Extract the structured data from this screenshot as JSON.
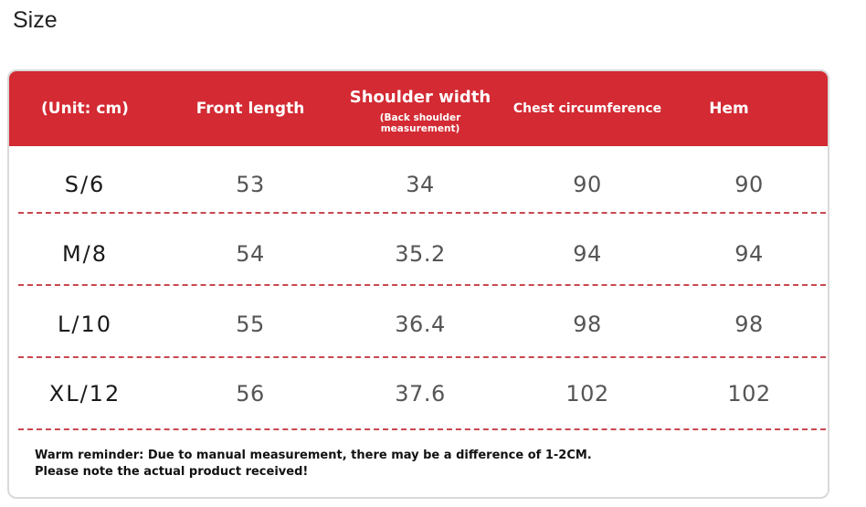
{
  "title": "Size",
  "table": {
    "columns": [
      {
        "label": "(Unit: cm)",
        "sub": ""
      },
      {
        "label": "Front length",
        "sub": ""
      },
      {
        "label": "Shoulder width",
        "sub": "(Back shoulder measurement)"
      },
      {
        "label": "Chest circumference",
        "sub": ""
      },
      {
        "label": "Hem",
        "sub": ""
      }
    ],
    "rows": [
      [
        "S/6",
        "53",
        "34",
        "90",
        "90"
      ],
      [
        "M/8",
        "54",
        "35.2",
        "94",
        "94"
      ],
      [
        "L/10",
        "55",
        "36.4",
        "98",
        "98"
      ],
      [
        "XL/12",
        "56",
        "37.6",
        "102",
        "102"
      ]
    ],
    "header_color": "#d32a33",
    "divider_color": "#c9484f"
  },
  "note": {
    "line1": "Warm reminder: Due to manual measurement, there may be a difference of 1-2CM.",
    "line2": "Please note the actual product received!"
  }
}
